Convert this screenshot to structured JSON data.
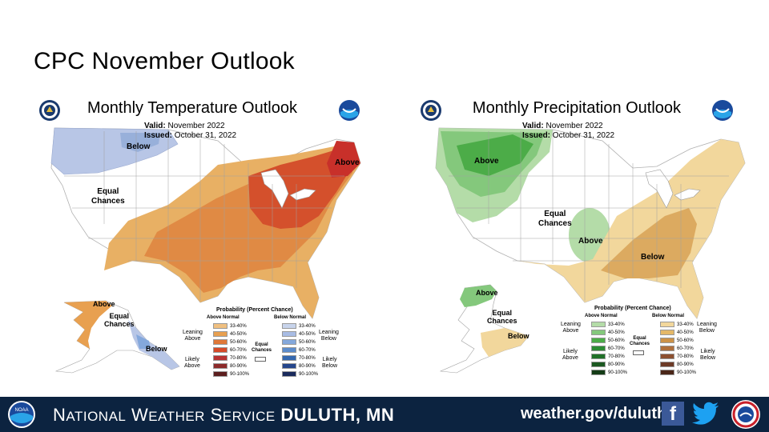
{
  "slide": {
    "title": "CPC November Outlook"
  },
  "temperature_map": {
    "title": "Monthly Temperature Outlook",
    "valid_label": "Valid:",
    "valid_value": "November 2022",
    "issued_label": "Issued:",
    "issued_value": "October 31, 2022",
    "regions": {
      "below_north": "Below",
      "equal_chances": [
        "Equal",
        "Chances"
      ],
      "above_northeast": "Above",
      "alaska_above": "Above",
      "alaska_equal": [
        "Equal",
        "Chances"
      ],
      "alaska_below": "Below"
    },
    "legend": {
      "title": "Probability (Percent Chance)",
      "above_header": "Above Normal",
      "below_header": "Below Normal",
      "leaning_above": [
        "Leaning",
        "Above"
      ],
      "likely_above": [
        "Likely",
        "Above"
      ],
      "leaning_below": [
        "Leaning",
        "Below"
      ],
      "likely_below": [
        "Likely",
        "Below"
      ],
      "equal_chances": [
        "Equal",
        "Chances"
      ],
      "ranges": [
        "33-40%",
        "40-50%",
        "50-60%",
        "60-70%",
        "70-80%",
        "80-90%",
        "90-100%"
      ],
      "above_colors": [
        "#f0c080",
        "#e8a050",
        "#e07838",
        "#d64a28",
        "#b83232",
        "#8c2a2a",
        "#5c1e1e"
      ],
      "below_colors": [
        "#c8d4ec",
        "#a8bce4",
        "#84a8dc",
        "#5c8ccc",
        "#3468b0",
        "#24468c",
        "#1a2a5c"
      ]
    },
    "colors": {
      "below": "#b8c6e6",
      "below_darker": "#98b0da",
      "lean_above": "#e8b064",
      "above_40": "#e08a44",
      "above_50": "#d4502c",
      "above_60": "#c8302a"
    }
  },
  "precipitation_map": {
    "title": "Monthly Precipitation Outlook",
    "valid_label": "Valid:",
    "valid_value": "November 2022",
    "issued_label": "Issued:",
    "issued_value": "October 31, 2022",
    "regions": {
      "above_northwest": "Above",
      "equal_chances": [
        "Equal",
        "Chances"
      ],
      "above_central": "Above",
      "below_southeast": "Below",
      "alaska_above": "Above",
      "alaska_equal": [
        "Equal",
        "Chances"
      ],
      "alaska_below": "Below"
    },
    "legend": {
      "title": "Probability (Percent Chance)",
      "above_header": "Above Normal",
      "below_header": "Below Normal",
      "leaning_above": [
        "Leaning",
        "Above"
      ],
      "likely_above": [
        "Likely",
        "Above"
      ],
      "leaning_below": [
        "Leaning",
        "Below"
      ],
      "likely_below": [
        "Likely",
        "Below"
      ],
      "equal_chances": [
        "Equal",
        "Chances"
      ],
      "ranges": [
        "33-40%",
        "40-50%",
        "50-60%",
        "60-70%",
        "70-80%",
        "80-90%",
        "90-100%"
      ],
      "above_colors": [
        "#b4dca8",
        "#84c87c",
        "#4cac48",
        "#2c8c34",
        "#207028",
        "#1a5820",
        "#143c16"
      ],
      "below_colors": [
        "#f2d79c",
        "#e4b868",
        "#cc9248",
        "#b0703c",
        "#8c5030",
        "#6c3a26",
        "#4a2618"
      ]
    },
    "colors": {
      "above_lean": "#b4dca8",
      "above_40": "#84c87c",
      "above_50": "#4cac48",
      "below_lean": "#f2d79c",
      "below_40": "#dcaa60"
    }
  },
  "footer": {
    "org_n": "N",
    "org_ational": "ATIONAL",
    "org_w": "W",
    "org_eather": "EATHER",
    "org_s": "S",
    "org_ervice": "ERVICE",
    "office": "DULUTH, MN",
    "url": "weather.gov/duluth",
    "facebook_glyph": "f",
    "noaa_text": "NOAA"
  }
}
